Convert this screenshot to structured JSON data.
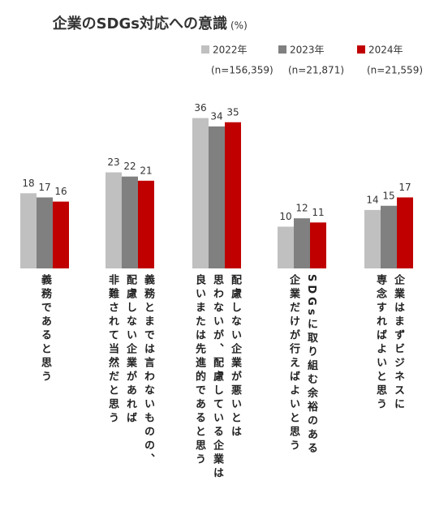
{
  "chart_data": {
    "type": "bar",
    "title": "企業のSDGs対応への意識",
    "unit": "(%)",
    "categories": [
      "義務であると思う",
      "義務とまでは言わないものの、\n配慮しない企業があれば\n非難されて当然だと思う",
      "配慮しない企業が悪いとは\n思わないが、配慮している企業は\n良いまたは先進的であると思う",
      "SDGsに取り組む余裕のある\n企業だけが行えばよいと思う",
      "企業はまずビジネスに\n専念すればよいと思う"
    ],
    "series": [
      {
        "name": "2022年",
        "note": "(n=156,359)",
        "color": "#c0c0c0",
        "values": [
          18,
          23,
          36,
          10,
          14
        ]
      },
      {
        "name": "2023年",
        "note": "(n=21,871)",
        "color": "#808080",
        "values": [
          17,
          22,
          34,
          12,
          15
        ]
      },
      {
        "name": "2024年",
        "note": "(n=21,559)",
        "color": "#c00000",
        "values": [
          16,
          21,
          35,
          11,
          17
        ]
      }
    ],
    "ylim": [
      0,
      40
    ]
  }
}
